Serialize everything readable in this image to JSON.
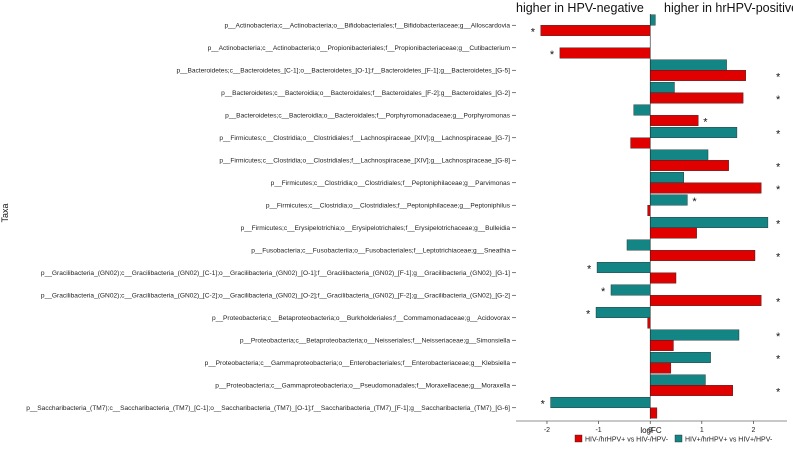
{
  "chart_data": {
    "type": "bar",
    "orientation": "horizontal",
    "title": "",
    "xlabel": "logFC",
    "ylabel": "Taxa",
    "xlim": [
      -2.6,
      2.65
    ],
    "xticks": [
      -2,
      -1,
      0,
      1,
      2
    ],
    "annotations": {
      "left": "higher in HPV-negative",
      "right": "higher in hrHPV-positive"
    },
    "colors": {
      "teal": "#138585",
      "red": "#e00000"
    },
    "legend_position": "bottom-right",
    "categories": [
      "p__Actinobacteria;c__Actinobacteria;o__Bifidobacteriales;f__Bifidobacteriaceae;g__Alloscardovia",
      "p__Actinobacteria;c__Actinobacteria;o__Propionibacteriales;f__Propionibacteriaceae;g__Cutibacterium",
      "p__Bacteroidetes;c__Bacteroidetes_[C-1];o__Bacteroidetes_[O-1];f__Bacteroidetes_[F-1];g__Bacteroidetes_[G-5]",
      "p__Bacteroidetes;c__Bacteroidia;o__Bacteroidales;f__Bacteroidales_[F-2];g__Bacteroidales_[G-2]",
      "p__Bacteroidetes;c__Bacteroidia;o__Bacteroidales;f__Porphyromonadaceae;g__Porphyromonas",
      "p__Firmicutes;c__Clostridia;o__Clostridiales;f__Lachnospiraceae_[XIV];g__Lachnospiraceae_[G-7]",
      "p__Firmicutes;c__Clostridia;o__Clostridiales;f__Lachnospiraceae_[XIV];g__Lachnospiraceae_[G-8]",
      "p__Firmicutes;c__Clostridia;o__Clostridiales;f__Peptoniphilaceae;g__Parvimonas",
      "p__Firmicutes;c__Clostridia;o__Clostridiales;f__Peptoniphilaceae;g__Peptoniphilus",
      "p__Firmicutes;c__Erysipelotrichia;o__Erysipelotrichales;f__Erysipelotrichaceae;g__Bulleidia",
      "p__Fusobacteria;c__Fusobacteriia;o__Fusobacteriales;f__Leptotrichiaceae;g__Sneathia",
      "p__Gracilibacteria_(GN02);c__Gracilibacteria_(GN02)_[C-1];o__Gracilibacteria_(GN02)_[O-1];f__Gracilibacteria_(GN02)_[F-1];g__Gracilibacteria_(GN02)_[G-1]",
      "p__Gracilibacteria_(GN02);c__Gracilibacteria_(GN02)_[C-2];o__Gracilibacteria_(GN02)_[O-2];f__Gracilibacteria_(GN02)_[F-2];g__Gracilibacteria_(GN02)_[G-2]",
      "p__Proteobacteria;c__Betaproteobacteria;o__Burkholderiales;f__Commamonadaceae;g__Acidovorax",
      "p__Proteobacteria;c__Betaproteobacteria;o__Neisseriales;f__Neisseriaceae;g__Simonsiella",
      "p__Proteobacteria;c__Gammaproteobacteria;o__Enterobacteriales;f__Enterobacteriaceae;g__Klebsiella",
      "p__Proteobacteria;c__Gammaproteobacteria;o__Pseudomonadales;f__Moraxellaceae;g__Moraxella",
      "p__Saccharibacteria_(TM7);c__Saccharibacteria_(TM7)_[C-1];o__Saccharibacteria_(TM7)_[O-1];f__Saccharibacteria_(TM7)_[F-1];g__Saccharibacteria_(TM7)_[G-6]"
    ],
    "series": [
      {
        "name": "HIV+/hrHPV+ vs HIV+/HPV-",
        "color": "#138585",
        "values": [
          0.1,
          0,
          1.48,
          0.47,
          -0.32,
          1.68,
          1.12,
          0.65,
          0.72,
          2.28,
          -0.45,
          -1.03,
          -0.76,
          -1.05,
          1.72,
          1.17,
          1.07,
          -1.93
        ],
        "significant": [
          false,
          false,
          false,
          false,
          false,
          true,
          false,
          false,
          true,
          true,
          false,
          true,
          true,
          true,
          true,
          true,
          false,
          true
        ]
      },
      {
        "name": "HIV-/hrHPV+ vs HIV-/HPV-",
        "color": "#e00000",
        "values": [
          -2.12,
          -1.75,
          1.85,
          1.8,
          0.93,
          -0.38,
          1.52,
          2.15,
          -0.05,
          0.9,
          2.03,
          0.5,
          2.15,
          -0.05,
          0.45,
          0.4,
          1.6,
          0.13
        ],
        "significant": [
          true,
          true,
          true,
          true,
          true,
          false,
          true,
          true,
          false,
          false,
          true,
          false,
          true,
          false,
          false,
          false,
          true,
          false
        ]
      }
    ],
    "legend": [
      {
        "label": "HIV-/hrHPV+ vs HIV-/HPV-",
        "color": "#e00000"
      },
      {
        "label": "HIV+/hrHPV+ vs HIV+/HPV-",
        "color": "#138585"
      }
    ],
    "significance_marker": "*"
  }
}
